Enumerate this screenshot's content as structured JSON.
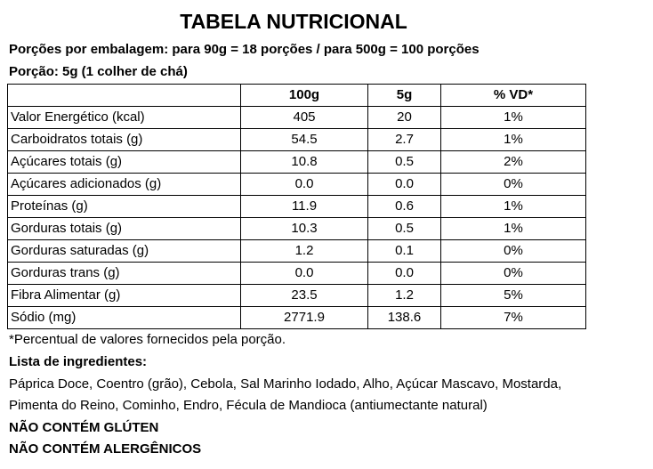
{
  "title": "TABELA NUTRICIONAL",
  "portions_line": "Porções por embalagem: para 90g = 18 porções / para 500g = 100 porções",
  "portion_line": "Porção: 5g (1 colher de chá)",
  "table": {
    "headers": [
      "",
      "100g",
      "5g",
      "% VD*"
    ],
    "rows": [
      [
        "Valor Energético (kcal)",
        "405",
        "20",
        "1%"
      ],
      [
        "Carboidratos totais (g)",
        "54.5",
        "2.7",
        "1%"
      ],
      [
        "Açúcares totais (g)",
        "10.8",
        "0.5",
        "2%"
      ],
      [
        "Açúcares adicionados (g)",
        "0.0",
        "0.0",
        "0%"
      ],
      [
        "Proteínas (g)",
        "11.9",
        "0.6",
        "1%"
      ],
      [
        "Gorduras totais (g)",
        "10.3",
        "0.5",
        "1%"
      ],
      [
        "Gorduras saturadas (g)",
        "1.2",
        "0.1",
        "0%"
      ],
      [
        "Gorduras trans (g)",
        "0.0",
        "0.0",
        "0%"
      ],
      [
        "Fibra Alimentar (g)",
        "23.5",
        "1.2",
        "5%"
      ],
      [
        "Sódio (mg)",
        "2771.9",
        "138.6",
        "7%"
      ]
    ]
  },
  "footnote": "*Percentual de valores fornecidos pela porção.",
  "ingredients_heading": "Lista de ingredientes:",
  "ingredients_line1": "Páprica Doce, Coentro (grão), Cebola, Sal Marinho Iodado, Alho, Açúcar Mascavo, Mostarda,",
  "ingredients_line2": "Pimenta do Reino, Cominho, Endro, Fécula de Mandioca (antiumectante natural)",
  "gluten_notice": "NÃO CONTÉM GLÚTEN",
  "allergen_notice": "NÃO CONTÉM ALERGÊNICOS"
}
